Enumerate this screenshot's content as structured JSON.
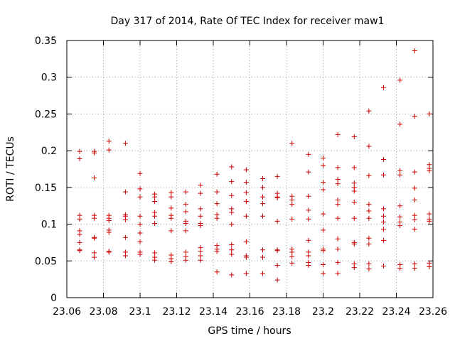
{
  "chart_data": {
    "type": "scatter",
    "title": "Day 317 of 2014, Rate Of TEC Index for receiver maw1",
    "xlabel": "GPS time / hours",
    "ylabel": "ROTI / TECUs",
    "xlim": [
      23.06,
      23.26
    ],
    "ylim": [
      0,
      0.35
    ],
    "xticks": [
      "23.06",
      "23.08",
      "23.1",
      "23.12",
      "23.14",
      "23.16",
      "23.18",
      "23.2",
      "23.22",
      "23.24",
      "23.26"
    ],
    "yticks": [
      "0",
      "0.05",
      "0.1",
      "0.15",
      "0.2",
      "0.25",
      "0.3",
      "0.35"
    ],
    "grid": true,
    "marker": "+",
    "color": "#cc0000",
    "points": [
      [
        23.067,
        0.199
      ],
      [
        23.067,
        0.189
      ],
      [
        23.067,
        0.112
      ],
      [
        23.067,
        0.107
      ],
      [
        23.067,
        0.091
      ],
      [
        23.067,
        0.086
      ],
      [
        23.067,
        0.075
      ],
      [
        23.067,
        0.065
      ],
      [
        23.067,
        0.064
      ],
      [
        23.075,
        0.199
      ],
      [
        23.075,
        0.197
      ],
      [
        23.075,
        0.163
      ],
      [
        23.075,
        0.112
      ],
      [
        23.075,
        0.108
      ],
      [
        23.075,
        0.082
      ],
      [
        23.075,
        0.081
      ],
      [
        23.075,
        0.061
      ],
      [
        23.075,
        0.055
      ],
      [
        23.083,
        0.213
      ],
      [
        23.083,
        0.201
      ],
      [
        23.083,
        0.112
      ],
      [
        23.083,
        0.108
      ],
      [
        23.083,
        0.105
      ],
      [
        23.083,
        0.092
      ],
      [
        23.083,
        0.089
      ],
      [
        23.083,
        0.063
      ],
      [
        23.083,
        0.062
      ],
      [
        23.092,
        0.21
      ],
      [
        23.092,
        0.144
      ],
      [
        23.092,
        0.113
      ],
      [
        23.092,
        0.111
      ],
      [
        23.092,
        0.106
      ],
      [
        23.092,
        0.082
      ],
      [
        23.092,
        0.062
      ],
      [
        23.092,
        0.057
      ],
      [
        23.1,
        0.169
      ],
      [
        23.1,
        0.148
      ],
      [
        23.1,
        0.137
      ],
      [
        23.1,
        0.111
      ],
      [
        23.1,
        0.1
      ],
      [
        23.1,
        0.088
      ],
      [
        23.1,
        0.076
      ],
      [
        23.1,
        0.062
      ],
      [
        23.1,
        0.059
      ],
      [
        23.108,
        0.141
      ],
      [
        23.108,
        0.137
      ],
      [
        23.108,
        0.131
      ],
      [
        23.108,
        0.116
      ],
      [
        23.108,
        0.111
      ],
      [
        23.108,
        0.101
      ],
      [
        23.108,
        0.061
      ],
      [
        23.108,
        0.055
      ],
      [
        23.108,
        0.051
      ],
      [
        23.117,
        0.143
      ],
      [
        23.117,
        0.137
      ],
      [
        23.117,
        0.122
      ],
      [
        23.117,
        0.112
      ],
      [
        23.117,
        0.108
      ],
      [
        23.117,
        0.091
      ],
      [
        23.117,
        0.058
      ],
      [
        23.117,
        0.053
      ],
      [
        23.117,
        0.049
      ],
      [
        23.125,
        0.144
      ],
      [
        23.125,
        0.127
      ],
      [
        23.125,
        0.117
      ],
      [
        23.125,
        0.104
      ],
      [
        23.125,
        0.101
      ],
      [
        23.125,
        0.091
      ],
      [
        23.125,
        0.062
      ],
      [
        23.125,
        0.056
      ],
      [
        23.125,
        0.051
      ],
      [
        23.133,
        0.153
      ],
      [
        23.133,
        0.142
      ],
      [
        23.133,
        0.121
      ],
      [
        23.133,
        0.111
      ],
      [
        23.133,
        0.101
      ],
      [
        23.133,
        0.098
      ],
      [
        23.133,
        0.068
      ],
      [
        23.133,
        0.063
      ],
      [
        23.133,
        0.057
      ],
      [
        23.133,
        0.051
      ],
      [
        23.142,
        0.168
      ],
      [
        23.142,
        0.144
      ],
      [
        23.142,
        0.128
      ],
      [
        23.142,
        0.113
      ],
      [
        23.142,
        0.108
      ],
      [
        23.142,
        0.071
      ],
      [
        23.142,
        0.066
      ],
      [
        23.142,
        0.063
      ],
      [
        23.142,
        0.035
      ],
      [
        23.15,
        0.178
      ],
      [
        23.15,
        0.158
      ],
      [
        23.15,
        0.139
      ],
      [
        23.15,
        0.121
      ],
      [
        23.15,
        0.116
      ],
      [
        23.15,
        0.1
      ],
      [
        23.15,
        0.072
      ],
      [
        23.15,
        0.065
      ],
      [
        23.15,
        0.059
      ],
      [
        23.15,
        0.031
      ],
      [
        23.158,
        0.174
      ],
      [
        23.158,
        0.157
      ],
      [
        23.158,
        0.143
      ],
      [
        23.158,
        0.131
      ],
      [
        23.158,
        0.111
      ],
      [
        23.158,
        0.076
      ],
      [
        23.158,
        0.057
      ],
      [
        23.158,
        0.055
      ],
      [
        23.158,
        0.033
      ],
      [
        23.167,
        0.162
      ],
      [
        23.167,
        0.15
      ],
      [
        23.167,
        0.137
      ],
      [
        23.167,
        0.128
      ],
      [
        23.167,
        0.111
      ],
      [
        23.167,
        0.065
      ],
      [
        23.167,
        0.055
      ],
      [
        23.167,
        0.033
      ],
      [
        23.175,
        0.165
      ],
      [
        23.175,
        0.142
      ],
      [
        23.175,
        0.137
      ],
      [
        23.175,
        0.136
      ],
      [
        23.175,
        0.104
      ],
      [
        23.175,
        0.065
      ],
      [
        23.175,
        0.064
      ],
      [
        23.175,
        0.044
      ],
      [
        23.175,
        0.024
      ],
      [
        23.183,
        0.21
      ],
      [
        23.183,
        0.138
      ],
      [
        23.183,
        0.133
      ],
      [
        23.183,
        0.127
      ],
      [
        23.183,
        0.107
      ],
      [
        23.183,
        0.066
      ],
      [
        23.183,
        0.062
      ],
      [
        23.183,
        0.056
      ],
      [
        23.183,
        0.047
      ],
      [
        23.192,
        0.195
      ],
      [
        23.192,
        0.171
      ],
      [
        23.192,
        0.138
      ],
      [
        23.192,
        0.119
      ],
      [
        23.192,
        0.107
      ],
      [
        23.192,
        0.078
      ],
      [
        23.192,
        0.062
      ],
      [
        23.192,
        0.057
      ],
      [
        23.192,
        0.048
      ],
      [
        23.192,
        0.044
      ],
      [
        23.2,
        0.19
      ],
      [
        23.2,
        0.18
      ],
      [
        23.2,
        0.157
      ],
      [
        23.2,
        0.147
      ],
      [
        23.2,
        0.114
      ],
      [
        23.2,
        0.092
      ],
      [
        23.2,
        0.066
      ],
      [
        23.2,
        0.064
      ],
      [
        23.2,
        0.045
      ],
      [
        23.2,
        0.033
      ],
      [
        23.208,
        0.222
      ],
      [
        23.208,
        0.177
      ],
      [
        23.208,
        0.161
      ],
      [
        23.208,
        0.155
      ],
      [
        23.208,
        0.133
      ],
      [
        23.208,
        0.127
      ],
      [
        23.208,
        0.108
      ],
      [
        23.208,
        0.08
      ],
      [
        23.208,
        0.066
      ],
      [
        23.208,
        0.048
      ],
      [
        23.208,
        0.033
      ],
      [
        23.217,
        0.219
      ],
      [
        23.217,
        0.177
      ],
      [
        23.217,
        0.156
      ],
      [
        23.217,
        0.15
      ],
      [
        23.217,
        0.145
      ],
      [
        23.217,
        0.13
      ],
      [
        23.217,
        0.108
      ],
      [
        23.217,
        0.075
      ],
      [
        23.217,
        0.073
      ],
      [
        23.217,
        0.046
      ],
      [
        23.217,
        0.041
      ],
      [
        23.225,
        0.254
      ],
      [
        23.225,
        0.206
      ],
      [
        23.225,
        0.166
      ],
      [
        23.225,
        0.127
      ],
      [
        23.225,
        0.118
      ],
      [
        23.225,
        0.108
      ],
      [
        23.225,
        0.081
      ],
      [
        23.225,
        0.073
      ],
      [
        23.225,
        0.046
      ],
      [
        23.225,
        0.039
      ],
      [
        23.233,
        0.286
      ],
      [
        23.233,
        0.188
      ],
      [
        23.233,
        0.167
      ],
      [
        23.233,
        0.121
      ],
      [
        23.233,
        0.111
      ],
      [
        23.233,
        0.103
      ],
      [
        23.233,
        0.093
      ],
      [
        23.233,
        0.078
      ],
      [
        23.233,
        0.043
      ],
      [
        23.242,
        0.296
      ],
      [
        23.242,
        0.236
      ],
      [
        23.242,
        0.173
      ],
      [
        23.242,
        0.167
      ],
      [
        23.242,
        0.125
      ],
      [
        23.242,
        0.11
      ],
      [
        23.242,
        0.103
      ],
      [
        23.242,
        0.098
      ],
      [
        23.242,
        0.045
      ],
      [
        23.242,
        0.04
      ],
      [
        23.25,
        0.336
      ],
      [
        23.25,
        0.247
      ],
      [
        23.25,
        0.171
      ],
      [
        23.25,
        0.149
      ],
      [
        23.25,
        0.133
      ],
      [
        23.25,
        0.112
      ],
      [
        23.25,
        0.106
      ],
      [
        23.25,
        0.093
      ],
      [
        23.25,
        0.046
      ],
      [
        23.25,
        0.04
      ],
      [
        23.258,
        0.25
      ],
      [
        23.258,
        0.181
      ],
      [
        23.258,
        0.176
      ],
      [
        23.258,
        0.173
      ],
      [
        23.258,
        0.114
      ],
      [
        23.258,
        0.107
      ],
      [
        23.258,
        0.104
      ],
      [
        23.258,
        0.047
      ],
      [
        23.258,
        0.042
      ]
    ]
  }
}
